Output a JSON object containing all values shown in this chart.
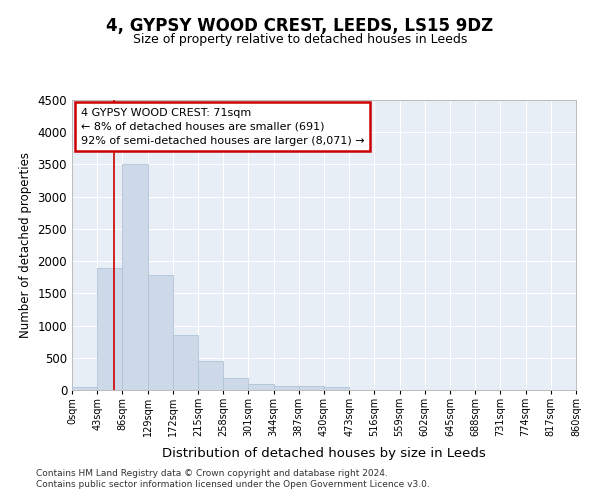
{
  "title": "4, GYPSY WOOD CREST, LEEDS, LS15 9DZ",
  "subtitle": "Size of property relative to detached houses in Leeds",
  "xlabel": "Distribution of detached houses by size in Leeds",
  "ylabel": "Number of detached properties",
  "bar_color": "#cdd9e8",
  "bar_edge_color": "#b0c4d8",
  "annotation_line_color": "#cc0000",
  "annotation_box_color": "#cc0000",
  "annotation_line1": "4 GYPSY WOOD CREST: 71sqm",
  "annotation_line2": "← 8% of detached houses are smaller (691)",
  "annotation_line3": "92% of semi-detached houses are larger (8,071) →",
  "property_size": 71,
  "bins": [
    0,
    43,
    86,
    129,
    172,
    215,
    258,
    301,
    344,
    387,
    430,
    473,
    516,
    559,
    602,
    645,
    688,
    731,
    774,
    817,
    860
  ],
  "counts": [
    40,
    1900,
    3500,
    1780,
    850,
    450,
    190,
    100,
    65,
    55,
    40,
    0,
    0,
    0,
    0,
    0,
    0,
    0,
    0,
    0
  ],
  "tick_labels": [
    "0sqm",
    "43sqm",
    "86sqm",
    "129sqm",
    "172sqm",
    "215sqm",
    "258sqm",
    "301sqm",
    "344sqm",
    "387sqm",
    "430sqm",
    "473sqm",
    "516sqm",
    "559sqm",
    "602sqm",
    "645sqm",
    "688sqm",
    "731sqm",
    "774sqm",
    "817sqm",
    "860sqm"
  ],
  "ylim": [
    0,
    4500
  ],
  "yticks": [
    0,
    500,
    1000,
    1500,
    2000,
    2500,
    3000,
    3500,
    4000,
    4500
  ],
  "footer_line1": "Contains HM Land Registry data © Crown copyright and database right 2024.",
  "footer_line2": "Contains public sector information licensed under the Open Government Licence v3.0.",
  "background_color": "#ffffff",
  "plot_background_color": "#e8eef6"
}
